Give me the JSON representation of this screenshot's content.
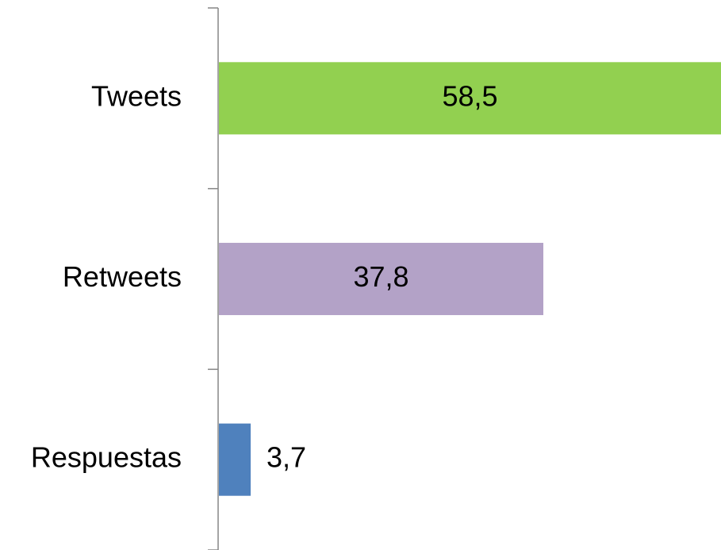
{
  "chart_data": {
    "type": "bar",
    "orientation": "horizontal",
    "categories": [
      "Tweets",
      "Retweets",
      "Respuestas"
    ],
    "values": [
      58.5,
      37.8,
      3.7
    ],
    "value_labels": [
      "58,5",
      "37,8",
      "3,7"
    ],
    "colors": [
      "#92d050",
      "#b3a2c7",
      "#4f81bd"
    ]
  }
}
